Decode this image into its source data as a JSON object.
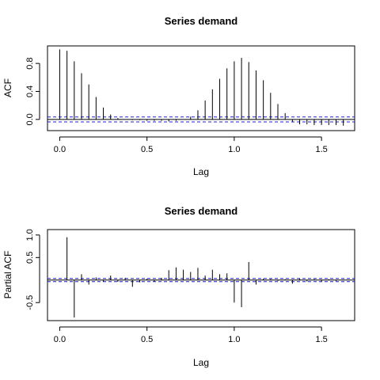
{
  "chart_data": [
    {
      "type": "bar",
      "title": "Series  demand",
      "xlabel": "Lag",
      "ylabel": "ACF",
      "xlim": [
        -0.07,
        1.69
      ],
      "ylim": [
        -0.16,
        1.05
      ],
      "xticks": [
        0.0,
        0.5,
        1.0,
        1.5
      ],
      "xtick_labels": [
        "0.0",
        "0.5",
        "1.0",
        "1.5"
      ],
      "yticks": [
        0.0,
        0.4,
        0.8
      ],
      "ytick_labels": [
        "0.0",
        "0.4",
        "0.8"
      ],
      "confidence_band": 0.035,
      "lags": [
        0.0,
        0.0417,
        0.0833,
        0.125,
        0.1667,
        0.2083,
        0.25,
        0.2917,
        0.3333,
        0.375,
        0.4167,
        0.4583,
        0.5,
        0.5417,
        0.5833,
        0.625,
        0.6667,
        0.7083,
        0.75,
        0.7917,
        0.8333,
        0.875,
        0.9167,
        0.9583,
        1.0,
        1.0417,
        1.0833,
        1.125,
        1.1667,
        1.2083,
        1.25,
        1.2917,
        1.3333,
        1.375,
        1.4167,
        1.4583,
        1.5,
        1.5417,
        1.5833,
        1.625
      ],
      "values": [
        1.0,
        0.98,
        0.83,
        0.66,
        0.5,
        0.32,
        0.17,
        0.07,
        0.02,
        0.0,
        -0.01,
        -0.01,
        -0.02,
        -0.02,
        -0.02,
        -0.03,
        -0.02,
        0.0,
        0.04,
        0.13,
        0.27,
        0.43,
        0.58,
        0.73,
        0.83,
        0.88,
        0.82,
        0.7,
        0.56,
        0.38,
        0.22,
        0.09,
        -0.03,
        -0.07,
        -0.07,
        -0.08,
        -0.08,
        -0.08,
        -0.08,
        -0.09
      ]
    },
    {
      "type": "bar",
      "title": "Series  demand",
      "xlabel": "Lag",
      "ylabel": "Partial ACF",
      "xlim": [
        -0.07,
        1.69
      ],
      "ylim": [
        -0.9,
        1.12
      ],
      "xticks": [
        0.0,
        0.5,
        1.0,
        1.5
      ],
      "xtick_labels": [
        "0.0",
        "0.5",
        "1.0",
        "1.5"
      ],
      "yticks": [
        -0.5,
        0.5,
        1.0
      ],
      "ytick_labels": [
        "-0.5",
        "0.5",
        "1.0"
      ],
      "confidence_band": 0.035,
      "lags": [
        0.0417,
        0.0833,
        0.125,
        0.1667,
        0.2083,
        0.25,
        0.2917,
        0.3333,
        0.375,
        0.4167,
        0.4583,
        0.5,
        0.5417,
        0.5833,
        0.625,
        0.6667,
        0.7083,
        0.75,
        0.7917,
        0.8333,
        0.875,
        0.9167,
        0.9583,
        1.0,
        1.0417,
        1.0833,
        1.125,
        1.1667,
        1.2083,
        1.25,
        1.2917,
        1.3333,
        1.375,
        1.4167,
        1.4583,
        1.5,
        1.5417,
        1.5833,
        1.625
      ],
      "values": [
        0.95,
        -0.83,
        0.13,
        -0.1,
        0.06,
        -0.04,
        0.1,
        -0.04,
        0.05,
        -0.15,
        -0.05,
        0.03,
        -0.04,
        0.05,
        0.22,
        0.28,
        0.23,
        0.18,
        0.27,
        0.1,
        0.23,
        0.13,
        0.15,
        -0.5,
        -0.6,
        0.4,
        -0.1,
        0.03,
        0.02,
        -0.02,
        0.02,
        -0.08,
        0.03,
        -0.03,
        0.02,
        -0.03,
        0.02,
        -0.02,
        0.01
      ]
    }
  ]
}
